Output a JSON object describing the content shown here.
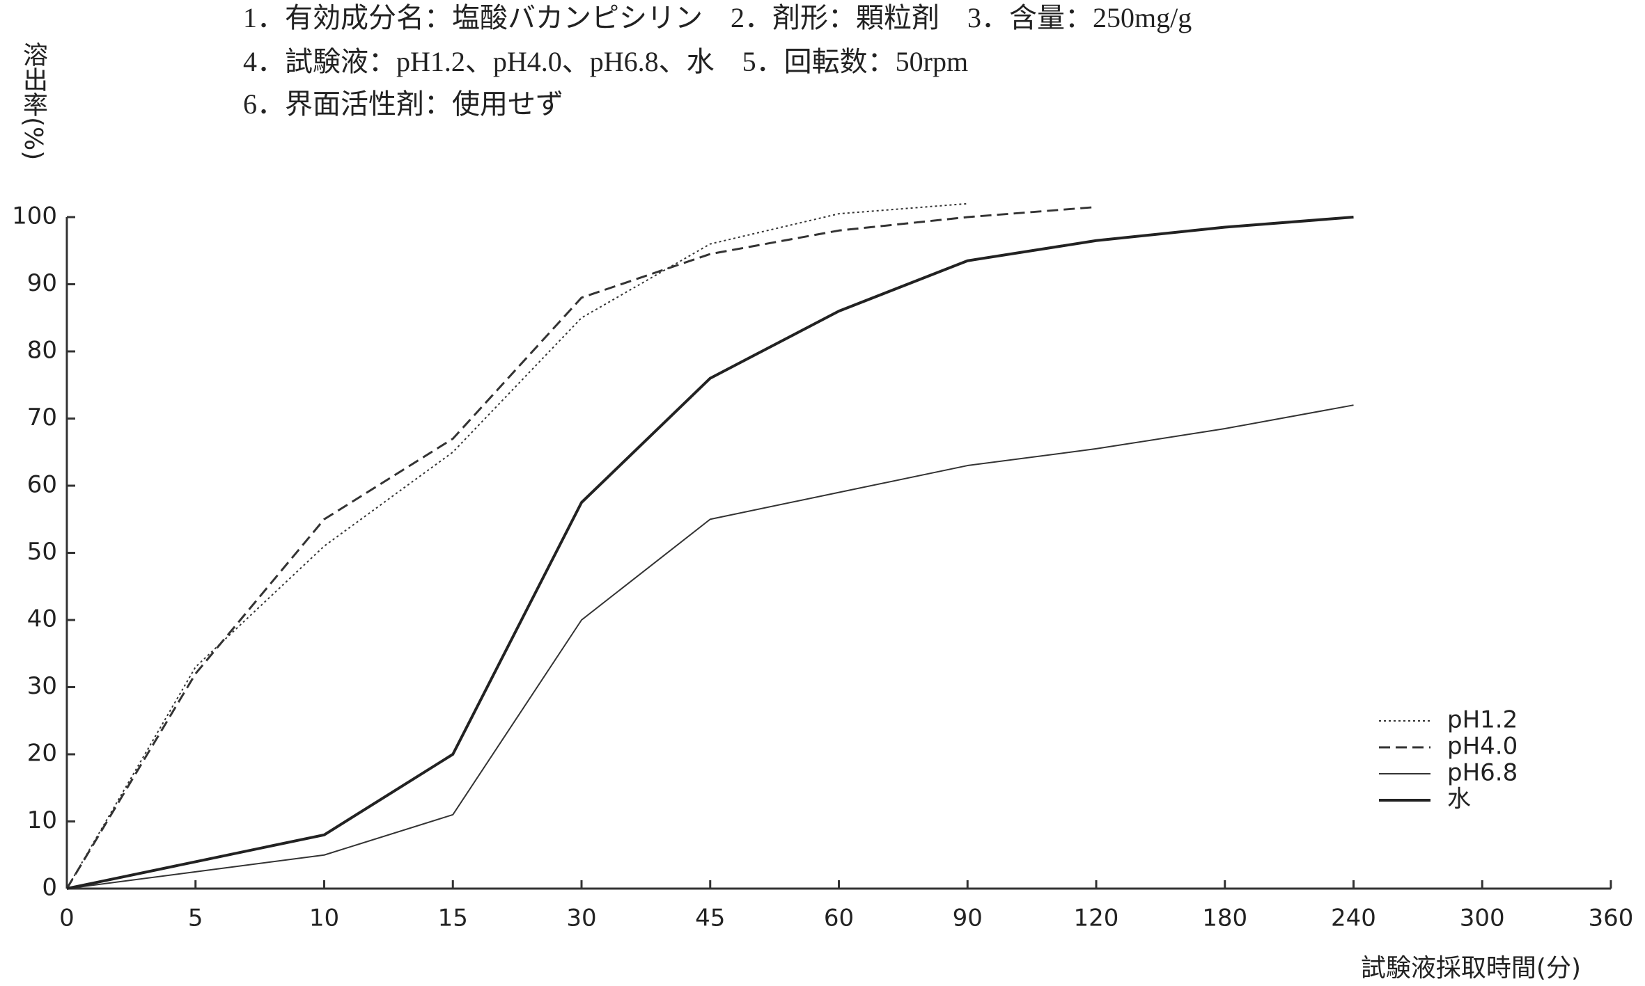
{
  "chart_data": {
    "type": "line",
    "header_lines": [
      "1．有効成分名：塩酸バカンピシリン　2．剤形：顆粒剤　3．含量：250mg/g",
      "4．試験液：pH1.2、pH4.0、pH6.8、水　5．回転数：50rpm",
      "6．界面活性剤：使用せず"
    ],
    "ylabel": "溶出率(%)",
    "xlabel": "試験液採取時間(分)",
    "categories": [
      "0",
      "5",
      "10",
      "15",
      "30",
      "45",
      "60",
      "90",
      "120",
      "180",
      "240",
      "300",
      "360"
    ],
    "series": [
      {
        "name": "pH1.2",
        "color": "#333333",
        "style": "dotted",
        "values": [
          0,
          33,
          51,
          65,
          85,
          96,
          100.5,
          102,
          null,
          null,
          null,
          null,
          null
        ]
      },
      {
        "name": "pH4.0",
        "color": "#333333",
        "style": "dashed",
        "values": [
          0,
          32,
          55,
          67,
          88,
          94.5,
          98,
          100,
          101.5,
          null,
          null,
          null,
          null
        ]
      },
      {
        "name": "pH6.8",
        "color": "#333333",
        "style": "solid",
        "values": [
          0,
          2.5,
          5,
          11,
          40,
          55,
          59,
          63,
          65.5,
          68.5,
          72,
          null,
          null
        ]
      },
      {
        "name": "水",
        "color": "#222222",
        "style": "bold",
        "values": [
          0,
          4,
          8,
          20,
          57.5,
          76,
          86,
          93.5,
          96.5,
          98.5,
          100,
          null,
          null
        ]
      }
    ],
    "ylim": [
      0,
      100
    ],
    "yticks": [
      0,
      10,
      20,
      30,
      40,
      50,
      60,
      70,
      80,
      90,
      100
    ],
    "legend": "lower right"
  }
}
